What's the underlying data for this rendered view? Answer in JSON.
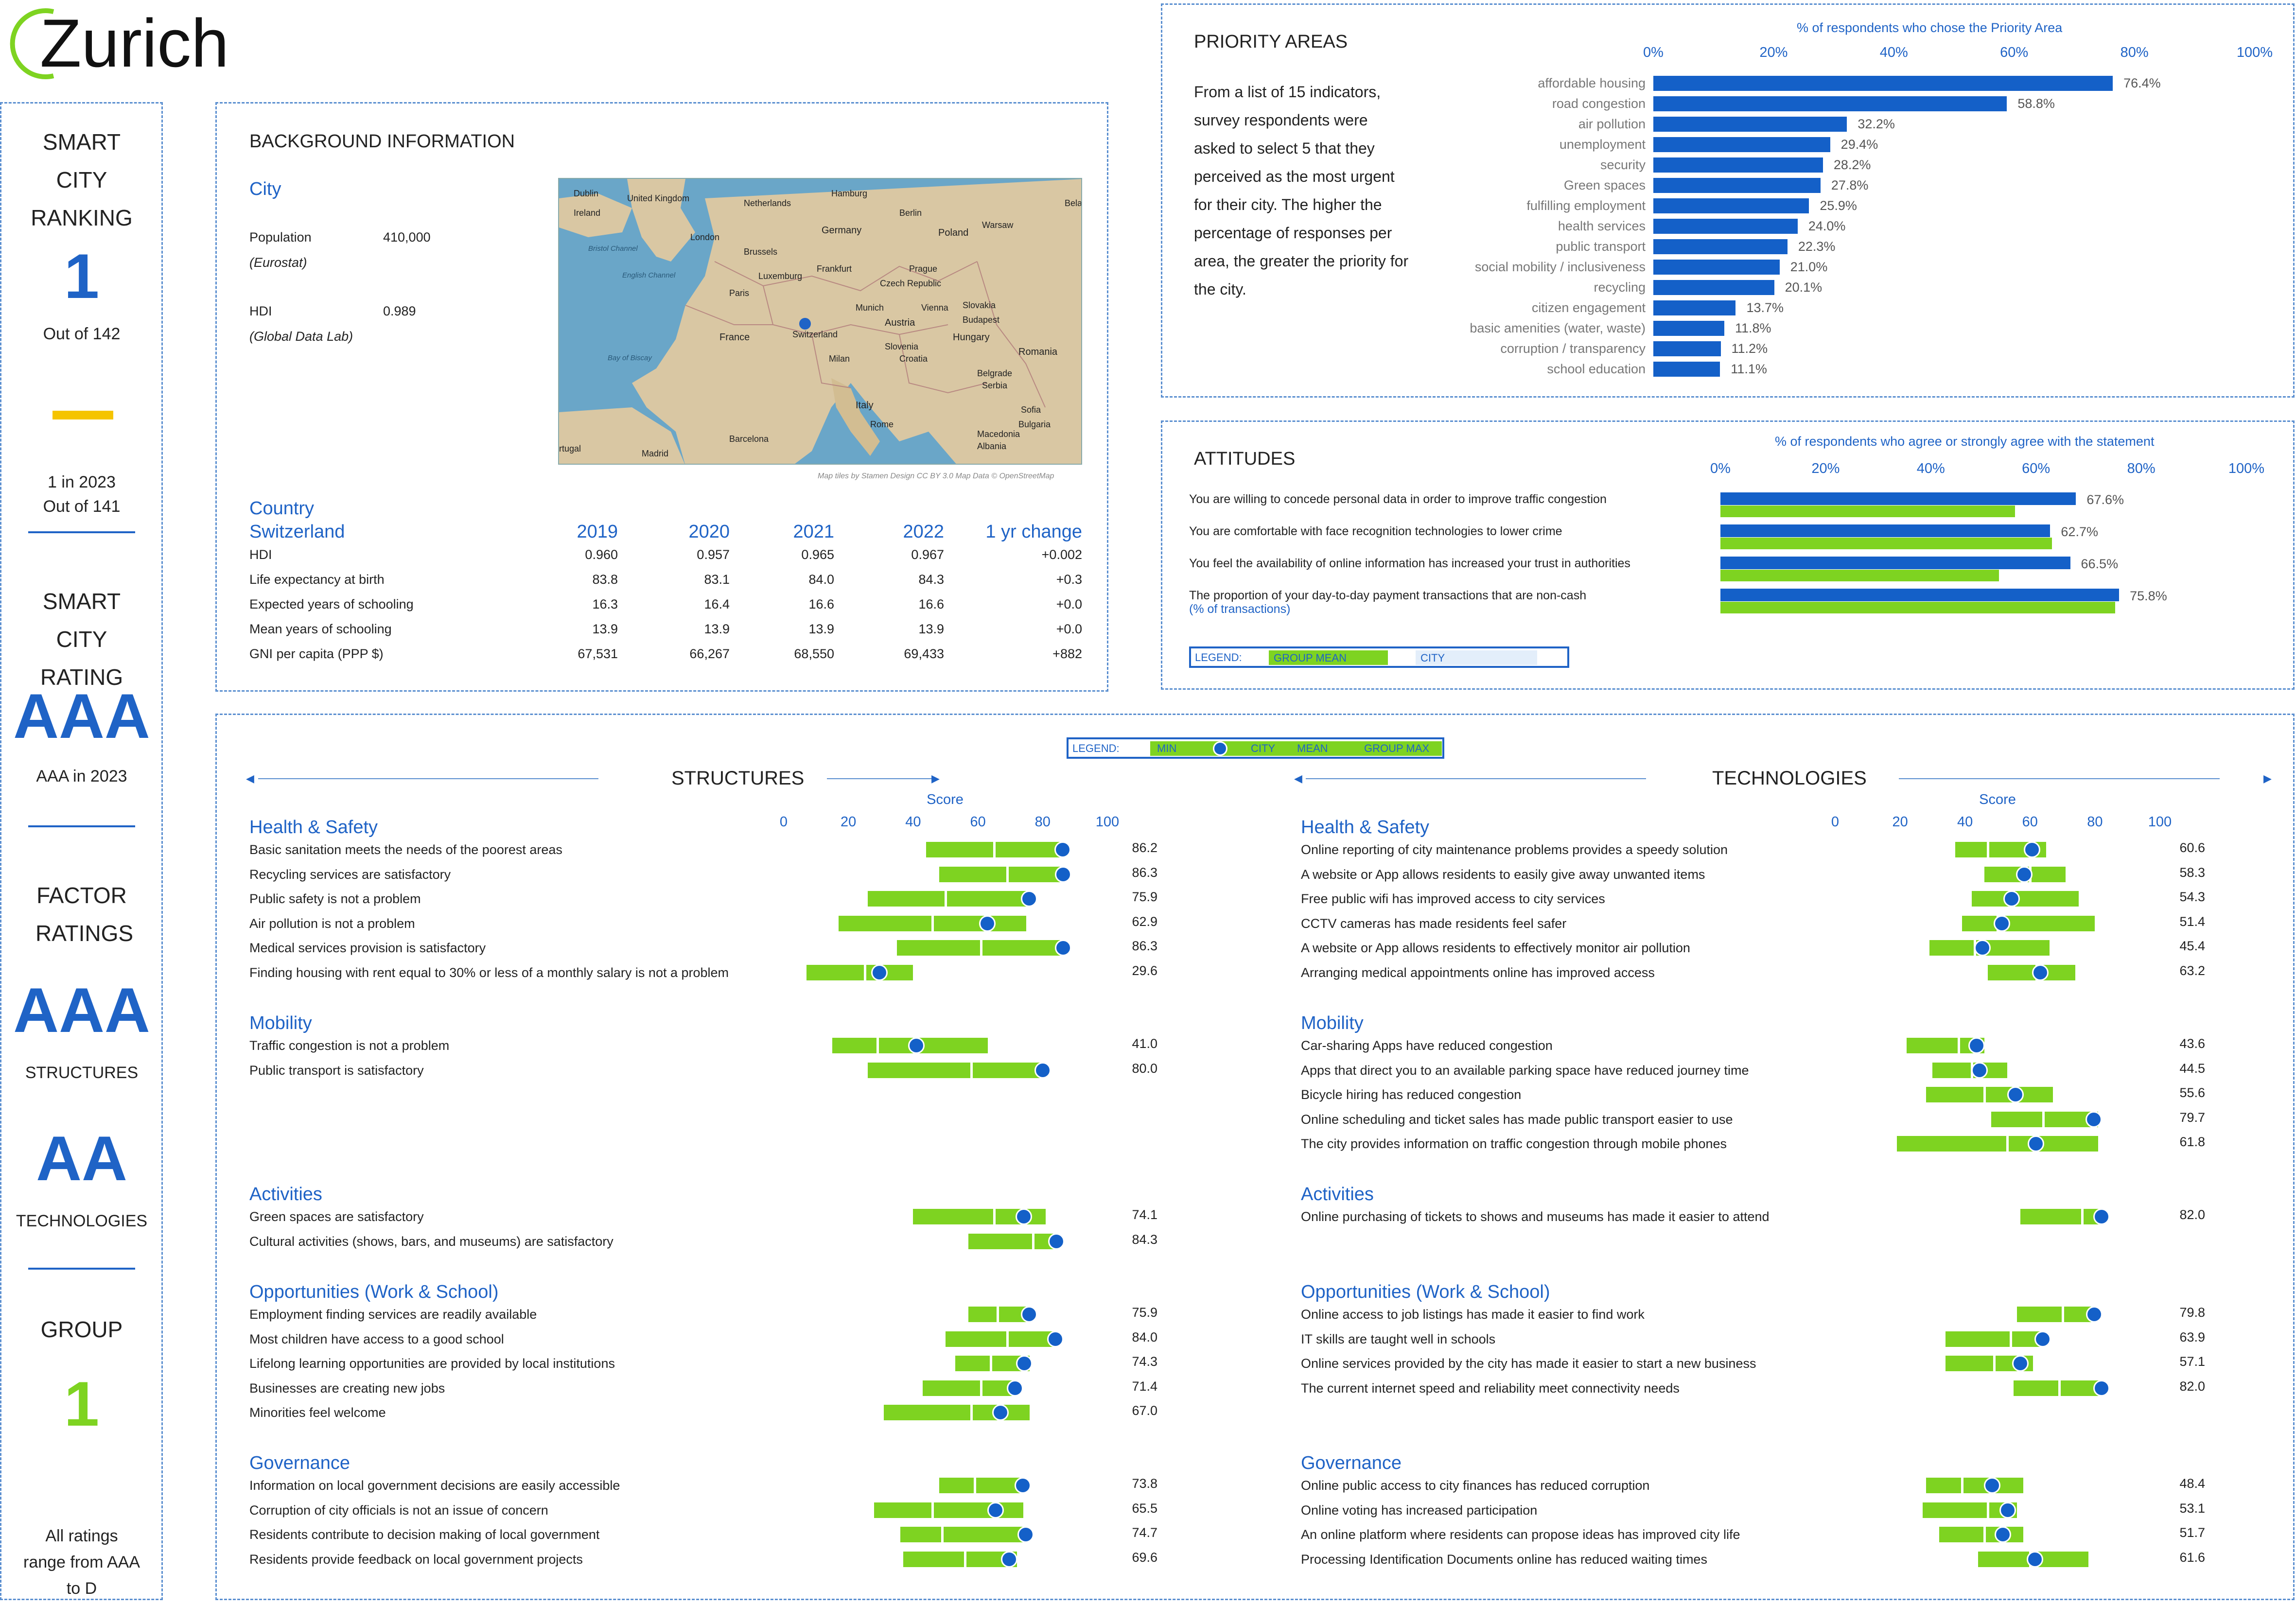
{
  "city_name": "Zurich",
  "left": {
    "ranking_title": "SMART CITY RANKING",
    "rank": "1",
    "rank_out_of": "Out of 142",
    "prev_rank": "1 in 2023",
    "prev_out_of": "Out of 141",
    "rating_title": "SMART CITY RATING",
    "rating": "AAA",
    "rating_prev": "AAA in 2023",
    "factor_title": "FACTOR RATINGS",
    "structures_rating": "AAA",
    "structures_label": "STRUCTURES",
    "technologies_rating": "AA",
    "technologies_label": "TECHNOLOGIES",
    "group_title": "GROUP",
    "group": "1",
    "footnote": "All ratings range from AAA to D"
  },
  "background": {
    "title": "BACKGROUND INFORMATION",
    "city_heading": "City",
    "population_label": "Population",
    "population_source": "(Eurostat)",
    "population_value": "410,000",
    "hdi_label": "HDI",
    "hdi_source": "(Global Data Lab)",
    "hdi_value": "0.989",
    "map_credit": "Map tiles by Stamen Design CC BY 3.0 Map Data © OpenStreetMap",
    "map_labels": [
      "Dublin",
      "United Kingdom",
      "Ireland",
      "Netherlands",
      "Hamburg",
      "Berlin",
      "Bela",
      "London",
      "Germany",
      "Poland",
      "Warsaw",
      "Brussels",
      "Frankfurt",
      "Prague",
      "Luxemburg",
      "Czech Republic",
      "Paris",
      "Munich",
      "Vienna",
      "Slovakia",
      "Budapest",
      "Austria",
      "France",
      "Switzerland",
      "Slovenia",
      "Hungary",
      "Milan",
      "Croatia",
      "Romania",
      "Belgrade",
      "Serbia",
      "Italy",
      "Sofia",
      "Bulgaria",
      "Rome",
      "Macedonia",
      "Albania",
      "Barcelona",
      "Madrid",
      "rtugal",
      "Bristol Channel",
      "English Channel",
      "Bay of Biscay"
    ],
    "country_heading_1": "Country",
    "country_heading_2": "Switzerland",
    "years": [
      "2019",
      "2020",
      "2021",
      "2022",
      "1 yr change"
    ],
    "rows": [
      {
        "label": "HDI",
        "v": [
          "0.960",
          "0.957",
          "0.965",
          "0.967",
          "+0.002"
        ]
      },
      {
        "label": "Life expectancy at birth",
        "v": [
          "83.8",
          "83.1",
          "84.0",
          "84.3",
          "+0.3"
        ]
      },
      {
        "label": "Expected years of schooling",
        "v": [
          "16.3",
          "16.4",
          "16.6",
          "16.6",
          "+0.0"
        ]
      },
      {
        "label": "Mean years of schooling",
        "v": [
          "13.9",
          "13.9",
          "13.9",
          "13.9",
          "+0.0"
        ]
      },
      {
        "label": "GNI per capita (PPP $)",
        "v": [
          "67,531",
          "66,267",
          "68,550",
          "69,433",
          "+882"
        ]
      }
    ]
  },
  "priority": {
    "title": "PRIORITY AREAS",
    "axis_title": "% of respondents who chose the Priority Area",
    "description": "From a list of 15 indicators, survey respondents were asked to select 5 that they perceived as the most urgent for their city. The higher the percentage of responses per area, the greater the priority for the city.",
    "ticks": [
      "0%",
      "20%",
      "40%",
      "60%",
      "80%",
      "100%"
    ]
  },
  "attitudes": {
    "title": "ATTITUDES",
    "axis_title": "% of respondents who agree or strongly agree with the statement",
    "ticks": [
      "0%",
      "20%",
      "40%",
      "60%",
      "80%",
      "100%"
    ],
    "legend_label": "LEGEND:",
    "legend_group": "GROUP MEAN",
    "legend_city": "CITY",
    "sub_note": "(% of transactions)"
  },
  "scores": {
    "legend_label": "LEGEND:",
    "legend_min": "MIN",
    "legend_city": "CITY",
    "legend_mean": "MEAN",
    "legend_max": "GROUP MAX",
    "structures_title": "STRUCTURES",
    "technologies_title": "TECHNOLOGIES",
    "score_label": "Score",
    "ticks": [
      "0",
      "20",
      "40",
      "60",
      "80",
      "100"
    ]
  },
  "colors": {
    "accent": "#1f63c6",
    "bar_blue": "#1460c8",
    "green": "#7ed321",
    "yellow": "#f5c400",
    "border": "#5b8fd0"
  },
  "chart_data": [
    {
      "type": "bar",
      "title": "PRIORITY AREAS",
      "xlabel": "% of respondents who chose the Priority Area",
      "xlim": [
        0,
        100
      ],
      "categories": [
        "affordable housing",
        "road congestion",
        "air pollution",
        "unemployment",
        "security",
        "Green spaces",
        "fulfilling employment",
        "health services",
        "public transport",
        "social mobility / inclusiveness",
        "recycling",
        "citizen engagement",
        "basic amenities (water, waste)",
        "corruption / transparency",
        "school education"
      ],
      "values": [
        76.4,
        58.8,
        32.2,
        29.4,
        28.2,
        27.8,
        25.9,
        24.0,
        22.3,
        21.0,
        20.1,
        13.7,
        11.8,
        11.2,
        11.1
      ],
      "value_labels": [
        "76.4%",
        "58.8%",
        "32.2%",
        "29.4%",
        "28.2%",
        "27.8%",
        "25.9%",
        "24.0%",
        "22.3%",
        "21.0%",
        "20.1%",
        "13.7%",
        "11.8%",
        "11.2%",
        "11.1%"
      ]
    },
    {
      "type": "bar",
      "title": "ATTITUDES",
      "xlabel": "% of respondents who agree or strongly agree with the statement",
      "xlim": [
        0,
        100
      ],
      "categories": [
        "You are willing to concede personal data in order to improve traffic congestion",
        "You are comfortable with face recognition technologies to lower crime",
        "You feel the availability of online information has increased your trust in authorities",
        "The proportion of your day-to-day payment transactions that are non-cash"
      ],
      "series": [
        {
          "name": "CITY",
          "values": [
            67.6,
            62.7,
            66.5,
            75.8
          ],
          "labels": [
            "67.6%",
            "62.7%",
            "66.5%",
            "75.8%"
          ]
        },
        {
          "name": "GROUP MEAN",
          "values": [
            56,
            63,
            53,
            75
          ]
        }
      ]
    },
    {
      "type": "range",
      "title": "STRUCTURES",
      "xlim": [
        0,
        100
      ],
      "sections": [
        {
          "name": "Health & Safety",
          "items": [
            {
              "label": "Basic sanitation meets the needs of the poorest areas",
              "min": 44,
              "mean": 65,
              "max": 86,
              "city": 86.2,
              "value": "86.2"
            },
            {
              "label": "Recycling services are satisfactory",
              "min": 48,
              "mean": 69,
              "max": 86,
              "city": 86.3,
              "value": "86.3"
            },
            {
              "label": "Public safety is not a problem",
              "min": 26,
              "mean": 50,
              "max": 76,
              "city": 75.9,
              "value": "75.9"
            },
            {
              "label": "Air pollution is not a problem",
              "min": 17,
              "mean": 46,
              "max": 75,
              "city": 62.9,
              "value": "62.9"
            },
            {
              "label": "Medical services provision is satisfactory",
              "min": 35,
              "mean": 61,
              "max": 86,
              "city": 86.3,
              "value": "86.3"
            },
            {
              "label": "Finding housing with rent equal to 30% or less of a monthly salary is not a problem",
              "min": 7,
              "mean": 25,
              "max": 40,
              "city": 29.6,
              "value": "29.6"
            }
          ]
        },
        {
          "name": "Mobility",
          "items": [
            {
              "label": "Traffic congestion is not a problem",
              "min": 15,
              "mean": 29,
              "max": 63,
              "city": 41.0,
              "value": "41.0"
            },
            {
              "label": "Public transport is satisfactory",
              "min": 26,
              "mean": 58,
              "max": 80,
              "city": 80.0,
              "value": "80.0"
            }
          ]
        },
        {
          "name": "Activities",
          "items": [
            {
              "label": "Green spaces are satisfactory",
              "min": 40,
              "mean": 65,
              "max": 81,
              "city": 74.1,
              "value": "74.1"
            },
            {
              "label": "Cultural activities (shows, bars, and museums) are satisfactory",
              "min": 57,
              "mean": 77,
              "max": 84,
              "city": 84.3,
              "value": "84.3"
            }
          ]
        },
        {
          "name": "Opportunities (Work & School)",
          "items": [
            {
              "label": "Employment finding services are readily available",
              "min": 57,
              "mean": 66,
              "max": 76,
              "city": 75.9,
              "value": "75.9"
            },
            {
              "label": "Most children have access to a good school",
              "min": 50,
              "mean": 69,
              "max": 84,
              "city": 84.0,
              "value": "84.0"
            },
            {
              "label": "Lifelong learning opportunities are provided by local institutions",
              "min": 53,
              "mean": 64,
              "max": 76,
              "city": 74.3,
              "value": "74.3"
            },
            {
              "label": "Businesses are creating new jobs",
              "min": 43,
              "mean": 61,
              "max": 72,
              "city": 71.4,
              "value": "71.4"
            },
            {
              "label": "Minorities feel welcome",
              "min": 31,
              "mean": 58,
              "max": 76,
              "city": 67.0,
              "value": "67.0"
            }
          ]
        },
        {
          "name": "Governance",
          "items": [
            {
              "label": "Information on local government decisions are easily accessible",
              "min": 48,
              "mean": 59,
              "max": 74,
              "city": 73.8,
              "value": "73.8"
            },
            {
              "label": "Corruption of city officials is not an issue of concern",
              "min": 28,
              "mean": 46,
              "max": 74,
              "city": 65.5,
              "value": "65.5"
            },
            {
              "label": "Residents contribute to decision making of local government",
              "min": 36,
              "mean": 49,
              "max": 75,
              "city": 74.7,
              "value": "74.7"
            },
            {
              "label": "Residents provide feedback on local government projects",
              "min": 37,
              "mean": 56,
              "max": 72,
              "city": 69.6,
              "value": "69.6"
            }
          ]
        }
      ]
    },
    {
      "type": "range",
      "title": "TECHNOLOGIES",
      "xlim": [
        0,
        100
      ],
      "sections": [
        {
          "name": "Health & Safety",
          "items": [
            {
              "label": "Online reporting of city maintenance problems provides a speedy solution",
              "min": 37,
              "mean": 47,
              "max": 65,
              "city": 60.6,
              "value": "60.6"
            },
            {
              "label": "A website or App allows residents to easily give away unwanted items",
              "min": 46,
              "mean": 60,
              "max": 71,
              "city": 58.3,
              "value": "58.3"
            },
            {
              "label": "Free public wifi has improved access to city services",
              "min": 42,
              "mean": 55,
              "max": 75,
              "city": 54.3,
              "value": "54.3"
            },
            {
              "label": "CCTV cameras has made residents feel safer",
              "min": 39,
              "mean": 50,
              "max": 80,
              "city": 51.4,
              "value": "51.4"
            },
            {
              "label": "A website or App allows residents to effectively monitor air pollution",
              "min": 29,
              "mean": 43,
              "max": 66,
              "city": 45.4,
              "value": "45.4"
            },
            {
              "label": "Arranging medical appointments online has improved access",
              "min": 47,
              "mean": 62,
              "max": 74,
              "city": 63.2,
              "value": "63.2"
            }
          ]
        },
        {
          "name": "Mobility",
          "items": [
            {
              "label": "Car-sharing Apps have reduced congestion",
              "min": 22,
              "mean": 38,
              "max": 46,
              "city": 43.6,
              "value": "43.6"
            },
            {
              "label": "Apps that direct you to an available parking space have reduced journey time",
              "min": 30,
              "mean": 42,
              "max": 53,
              "city": 44.5,
              "value": "44.5"
            },
            {
              "label": "Bicycle hiring has reduced congestion",
              "min": 28,
              "mean": 46,
              "max": 67,
              "city": 55.6,
              "value": "55.6"
            },
            {
              "label": "Online scheduling and ticket sales has made public transport easier to use",
              "min": 48,
              "mean": 64,
              "max": 81,
              "city": 79.7,
              "value": "79.7"
            },
            {
              "label": "The city provides information on traffic congestion through mobile phones",
              "min": 19,
              "mean": 53,
              "max": 81,
              "city": 61.8,
              "value": "61.8"
            }
          ]
        },
        {
          "name": "Activities",
          "items": [
            {
              "label": "Online purchasing of tickets to shows and museums has made it easier to attend",
              "min": 57,
              "mean": 76,
              "max": 82,
              "city": 82.0,
              "value": "82.0"
            }
          ]
        },
        {
          "name": "Opportunities (Work & School)",
          "items": [
            {
              "label": "Online access to job listings has made it easier to find work",
              "min": 56,
              "mean": 70,
              "max": 80,
              "city": 79.8,
              "value": "79.8"
            },
            {
              "label": "IT skills are taught well in schools",
              "min": 34,
              "mean": 54,
              "max": 64,
              "city": 63.9,
              "value": "63.9"
            },
            {
              "label": "Online services provided by the city has made it easier to start a new business",
              "min": 34,
              "mean": 49,
              "max": 61,
              "city": 57.1,
              "value": "57.1"
            },
            {
              "label": "The current internet speed and reliability meet connectivity needs",
              "min": 55,
              "mean": 69,
              "max": 82,
              "city": 82.0,
              "value": "82.0"
            }
          ]
        },
        {
          "name": "Governance",
          "items": [
            {
              "label": "Online public access to city finances has reduced corruption",
              "min": 28,
              "mean": 39,
              "max": 58,
              "city": 48.4,
              "value": "48.4"
            },
            {
              "label": "Online voting has increased participation",
              "min": 27,
              "mean": 47,
              "max": 56,
              "city": 53.1,
              "value": "53.1"
            },
            {
              "label": "An online platform where residents can propose ideas has improved city life",
              "min": 32,
              "mean": 46,
              "max": 58,
              "city": 51.7,
              "value": "51.7"
            },
            {
              "label": "Processing Identification Documents online has reduced waiting times",
              "min": 44,
              "mean": 60,
              "max": 78,
              "city": 61.6,
              "value": "61.6"
            }
          ]
        }
      ]
    }
  ]
}
